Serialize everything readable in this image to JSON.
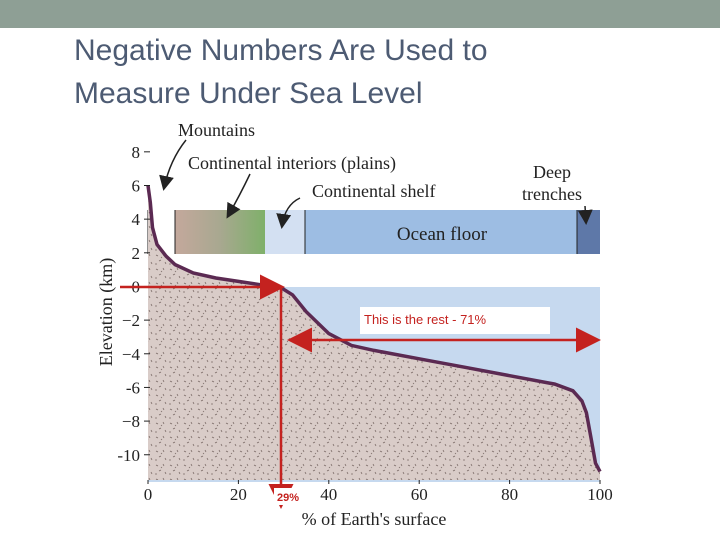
{
  "chart_data": {
    "type": "line",
    "title": "Negative Numbers Are Used to Measure Under Sea Level",
    "x_label": "% of Earth's surface",
    "y_label": "Elevation (km)",
    "x": [
      0,
      0.5,
      1,
      2,
      4,
      6,
      10,
      15,
      20,
      25,
      29,
      32,
      35,
      40,
      45,
      50,
      60,
      70,
      80,
      90,
      94,
      96,
      97,
      98,
      99,
      100
    ],
    "values": [
      6,
      5,
      3.5,
      2.5,
      1.8,
      1.3,
      0.8,
      0.5,
      0.3,
      0.1,
      0,
      -0.5,
      -1.5,
      -2.8,
      -3.5,
      -3.8,
      -4.3,
      -4.8,
      -5.3,
      -5.8,
      -6.2,
      -6.8,
      -7.5,
      -9,
      -10.5,
      -11
    ],
    "color": "#5b2a52",
    "xlim": [
      0,
      100
    ],
    "ylim": [
      -11.5,
      9
    ],
    "xticks": [
      0,
      20,
      40,
      60,
      80,
      100
    ],
    "yticks": [
      8,
      6,
      4,
      2,
      0,
      {
        "value": -2,
        "label": "−2"
      },
      {
        "value": -4,
        "label": "−4"
      },
      {
        "value": -6,
        "label": "-6"
      },
      {
        "value": -8,
        "label": "−8"
      },
      {
        "value": -10,
        "label": "-10"
      }
    ],
    "annotations": [
      "Mountains",
      "Continental interiors (plains)",
      "Continental shelf",
      "Deep trenches",
      "Ocean floor",
      "This is the rest - 71%",
      "29%"
    ]
  }
}
